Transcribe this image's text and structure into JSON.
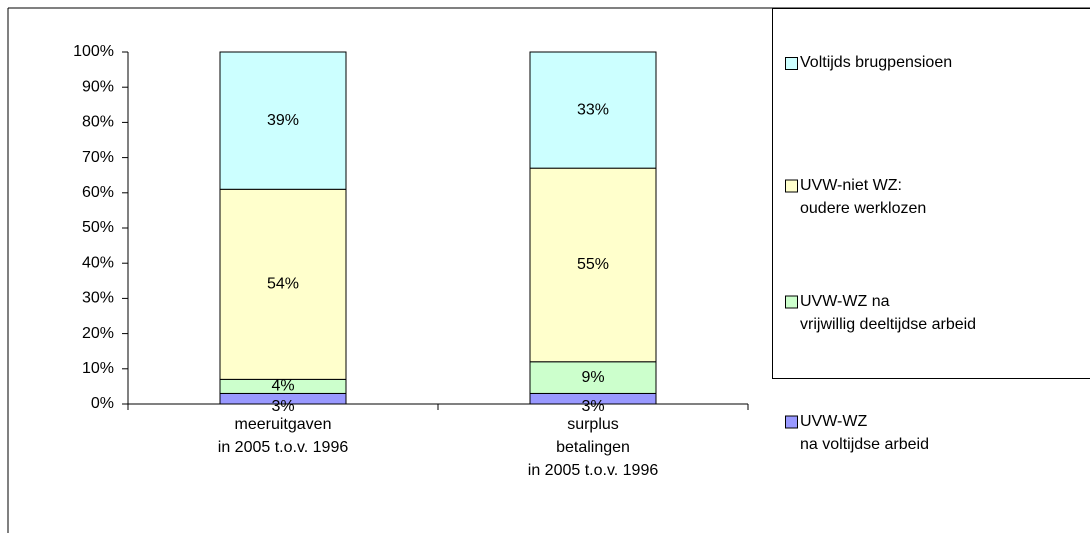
{
  "chart_data": {
    "type": "stacked_bar",
    "categories": [
      "meeruitgaven\nin 2005 t.o.v. 1996",
      "surplus\nbetalingen\nin 2005 t.o.v. 1996"
    ],
    "series": [
      {
        "name": "UVW-WZ\nna voltijdse arbeid",
        "color": "#9999ff",
        "values": [
          3,
          3
        ],
        "value_labels": [
          "3%",
          "3%"
        ]
      },
      {
        "name": "UVW-WZ na\nvrijwillig deeltijdse arbeid",
        "color": "#ccffcc",
        "values": [
          4,
          9
        ],
        "value_labels": [
          "4%",
          "9%"
        ]
      },
      {
        "name": "UVW-niet WZ:\noudere werklozen",
        "color": "#ffffcc",
        "values": [
          54,
          55
        ],
        "value_labels": [
          "54%",
          "55%"
        ]
      },
      {
        "name": "Voltijds brugpensioen",
        "color": "#ccffff",
        "values": [
          39,
          33
        ],
        "value_labels": [
          "39%",
          "33%"
        ]
      }
    ],
    "ylim": [
      0,
      100
    ],
    "yticks": [
      {
        "value": 0,
        "label": "0%"
      },
      {
        "value": 10,
        "label": "10%"
      },
      {
        "value": 20,
        "label": "20%"
      },
      {
        "value": 30,
        "label": "30%"
      },
      {
        "value": 40,
        "label": "40%"
      },
      {
        "value": 50,
        "label": "50%"
      },
      {
        "value": 60,
        "label": "60%"
      },
      {
        "value": 70,
        "label": "70%"
      },
      {
        "value": 80,
        "label": "80%"
      },
      {
        "value": 90,
        "label": "90%"
      },
      {
        "value": 100,
        "label": "100%"
      }
    ],
    "legend": "right"
  }
}
